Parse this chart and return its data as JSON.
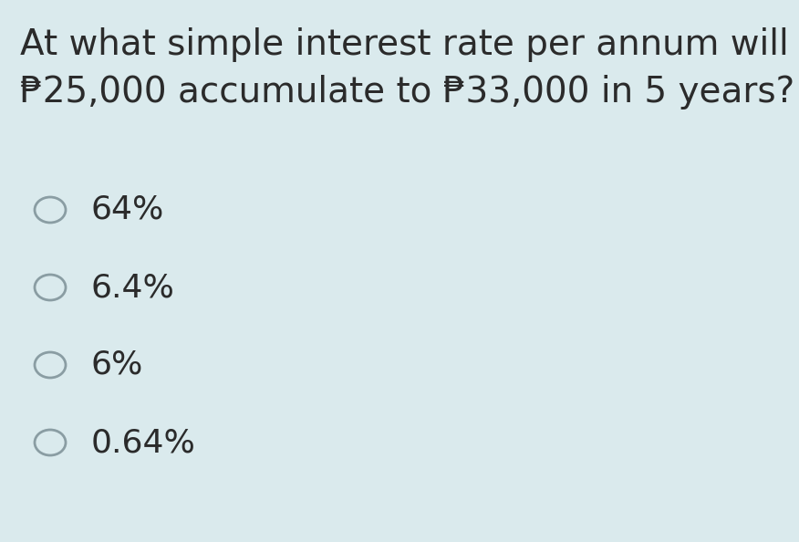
{
  "background_color": "#daeaed",
  "question_line1": "At what simple interest rate per annum will",
  "question_line2": "₱25,000 accumulate to ₱33,000 in 5 years?",
  "options": [
    "64%",
    "6.4%",
    "6%",
    "0.64%"
  ],
  "text_color": "#2b2b2b",
  "circle_edge_color": "#8a9da3",
  "question_fontsize": 28,
  "option_fontsize": 26,
  "fig_width": 8.76,
  "fig_height": 5.94,
  "dpi": 100
}
